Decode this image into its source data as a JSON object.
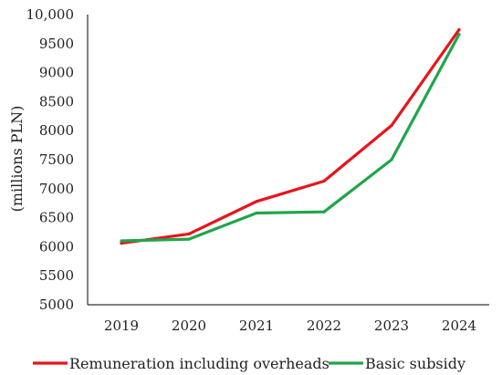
{
  "chart_data": {
    "type": "line",
    "title": "",
    "xlabel": "",
    "ylabel": "(millions PLN)",
    "categories": [
      "2019",
      "2020",
      "2021",
      "2022",
      "2023",
      "2024"
    ],
    "y_ticks": [
      "5000",
      "5500",
      "6000",
      "6500",
      "7000",
      "7500",
      "8000",
      "8500",
      "9000",
      "9500",
      "10,000"
    ],
    "ylim": [
      5000,
      10000
    ],
    "grid": false,
    "legend_position": "bottom",
    "series": [
      {
        "name": "Remuneration including overheads",
        "color": "#e8141c",
        "values": [
          6060,
          6220,
          6780,
          7130,
          8090,
          9740
        ]
      },
      {
        "name": "Basic subsidy",
        "color": "#1fa64a",
        "values": [
          6100,
          6130,
          6580,
          6600,
          7500,
          9660
        ]
      }
    ]
  }
}
